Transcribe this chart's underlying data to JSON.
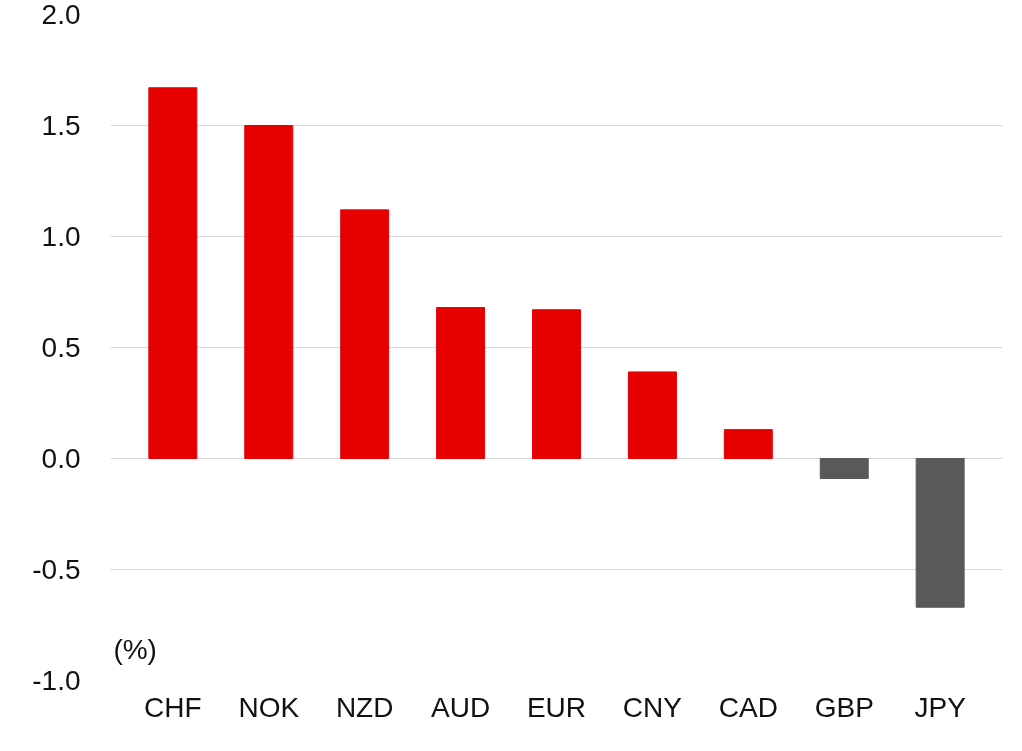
{
  "chart_data": {
    "type": "bar",
    "ylabel": "(%)",
    "categories": [
      "CHF",
      "NOK",
      "NZD",
      "AUD",
      "EUR",
      "CNY",
      "CAD",
      "GBP",
      "JPY"
    ],
    "values": [
      1.67,
      1.5,
      1.12,
      0.68,
      0.67,
      0.39,
      0.13,
      -0.09,
      -0.67
    ],
    "colors": [
      "#e60000",
      "#e60000",
      "#e60000",
      "#e60000",
      "#e60000",
      "#e60000",
      "#e60000",
      "#595959",
      "#595959"
    ],
    "ylim": [
      -1.0,
      2.0
    ],
    "yticks": [
      {
        "value": -1.0,
        "label": "-1.0"
      },
      {
        "value": -0.5,
        "label": "-0.5"
      },
      {
        "value": 0.0,
        "label": "0.0"
      },
      {
        "value": 0.5,
        "label": "0.5"
      },
      {
        "value": 1.0,
        "label": "1.0"
      },
      {
        "value": 1.5,
        "label": "1.5"
      },
      {
        "value": 2.0,
        "label": "2.0"
      }
    ],
    "grid": "y"
  }
}
